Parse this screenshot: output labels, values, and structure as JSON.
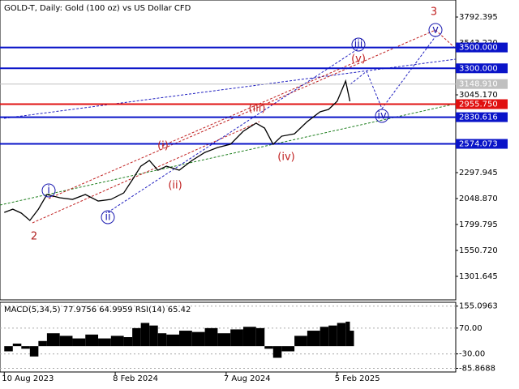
{
  "chart_data": [
    {
      "type": "line",
      "title": "GOLD-T, Daily:  Gold (100 oz) vs US Dollar CFD",
      "x": [
        0,
        2,
        4,
        6,
        8,
        10,
        13,
        16,
        19,
        22,
        25,
        28,
        30,
        32,
        34,
        36,
        38,
        41,
        44,
        47,
        50,
        53,
        56,
        59,
        61,
        63,
        65,
        68,
        71,
        74,
        76,
        78,
        80,
        81
      ],
      "series": [
        {
          "name": "GOLD-T",
          "color": "#000000",
          "values": [
            1916,
            1947,
            1909,
            1839,
            1947,
            2088,
            2057,
            2041,
            2088,
            2025,
            2041,
            2103,
            2228,
            2360,
            2415,
            2321,
            2360,
            2321,
            2415,
            2492,
            2539,
            2570,
            2695,
            2773,
            2726,
            2570,
            2648,
            2671,
            2788,
            2882,
            2905,
            2983,
            3178,
            2983
          ]
        }
      ],
      "xlim": [
        -1,
        105.8
      ],
      "xticks": [
        {
          "value": 0,
          "label": "10 Aug 2023"
        },
        {
          "value": 26,
          "label": "8 Feb 2024"
        },
        {
          "value": 52,
          "label": "7 Aug 2024"
        },
        {
          "value": 78,
          "label": "5 Feb 2025"
        }
      ],
      "ylim": [
        1076,
        3956
      ],
      "yticks": [
        3792.395,
        {
          "value": 3543.22,
          "label": "3543.220"
        },
        {
          "value": 3045.17,
          "label": "3045.170"
        },
        2297.945,
        {
          "value": 2048.87,
          "label": "2048.870"
        },
        1799.795,
        {
          "value": 1550.72,
          "label": "1550.720"
        },
        1301.645
      ],
      "levels": [
        {
          "value": 3500,
          "label": "3500.000",
          "color": "#0a14c8"
        },
        {
          "value": 3300,
          "label": "3300.000",
          "color": "#0a14c8"
        },
        {
          "value": 3148.91,
          "label": "3148.910",
          "color": "#c0c0c0"
        },
        {
          "value": 2955.75,
          "label": "2955.750",
          "color": "#e01010"
        },
        {
          "value": 2830.616,
          "label": "2830.616",
          "color": "#0a14c8"
        },
        {
          "value": 2574.073,
          "label": "2574.073",
          "color": "#0a14c8"
        }
      ],
      "annotations": [
        "2",
        "i",
        "ii",
        "(i)",
        "(ii)",
        "(iii)",
        "(iv)",
        "(v)",
        "iii",
        "iv",
        "v",
        "3"
      ]
    },
    {
      "type": "bar",
      "title": "MACD(5,34,5) 77.9756 64.9959 RSI(14) 65.42",
      "x": [
        0,
        2,
        4,
        6,
        8,
        10,
        13,
        16,
        19,
        22,
        25,
        28,
        30,
        32,
        34,
        36,
        38,
        41,
        44,
        47,
        50,
        53,
        56,
        59,
        61,
        63,
        65,
        68,
        71,
        74,
        76,
        78,
        80,
        81
      ],
      "values": [
        -20,
        10,
        -10,
        -40,
        20,
        50,
        40,
        30,
        45,
        30,
        40,
        35,
        70,
        90,
        80,
        50,
        45,
        60,
        55,
        70,
        50,
        65,
        75,
        70,
        -10,
        -45,
        -20,
        40,
        60,
        75,
        80,
        90,
        95,
        60
      ],
      "color": "#000000",
      "ylim": [
        -100,
        170
      ],
      "yticks": [
        155.0963,
        {
          "value": 70,
          "label": "70.00"
        },
        {
          "value": -30,
          "label": "-30.00"
        },
        -85.8688
      ]
    }
  ]
}
